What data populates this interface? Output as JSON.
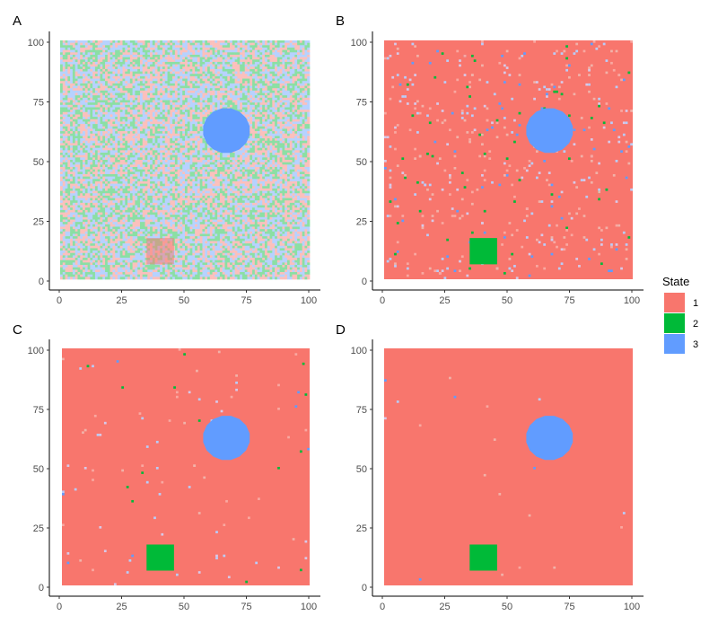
{
  "chart_data": {
    "type": "heatmap",
    "legend": {
      "title": "State",
      "position": "right",
      "entries": [
        {
          "label": "1",
          "color": "#F8766D"
        },
        {
          "label": "2",
          "color": "#00BA38"
        },
        {
          "label": "3",
          "color": "#619CFF"
        }
      ]
    },
    "x_ticks": [
      "0",
      "25",
      "50",
      "75",
      "100"
    ],
    "y_ticks": [
      "0",
      "25",
      "50",
      "75",
      "100"
    ],
    "xlim": [
      0,
      100
    ],
    "ylim": [
      0,
      100
    ],
    "grid": false,
    "panels": [
      {
        "tag": "A",
        "background": "random_mixture",
        "mix_probabilities": [
          0.33,
          0.33,
          0.34
        ],
        "opacity": 0.45,
        "square": {
          "state": "1",
          "x_range": [
            35,
            46
          ],
          "y_range": [
            7,
            18
          ],
          "opacity": 0.5
        },
        "circle": {
          "state": "3",
          "center": [
            67,
            63
          ],
          "radius": 9.5
        }
      },
      {
        "tag": "B",
        "background_state": "1",
        "noise_fraction": 0.05,
        "square": {
          "state": "2",
          "x_range": [
            35,
            46
          ],
          "y_range": [
            7,
            18
          ]
        },
        "circle": {
          "state": "3",
          "center": [
            67,
            63
          ],
          "radius": 9.5
        }
      },
      {
        "tag": "C",
        "background_state": "1",
        "noise_fraction": 0.01,
        "square": {
          "state": "2",
          "x_range": [
            35,
            46
          ],
          "y_range": [
            7,
            18
          ]
        },
        "circle": {
          "state": "3",
          "center": [
            67,
            63
          ],
          "radius": 9.5
        }
      },
      {
        "tag": "D",
        "background_state": "1",
        "noise_fraction": 0.002,
        "square": {
          "state": "2",
          "x_range": [
            35,
            46
          ],
          "y_range": [
            7,
            18
          ]
        },
        "circle": {
          "state": "3",
          "center": [
            67,
            63
          ],
          "radius": 9.5
        }
      }
    ]
  }
}
